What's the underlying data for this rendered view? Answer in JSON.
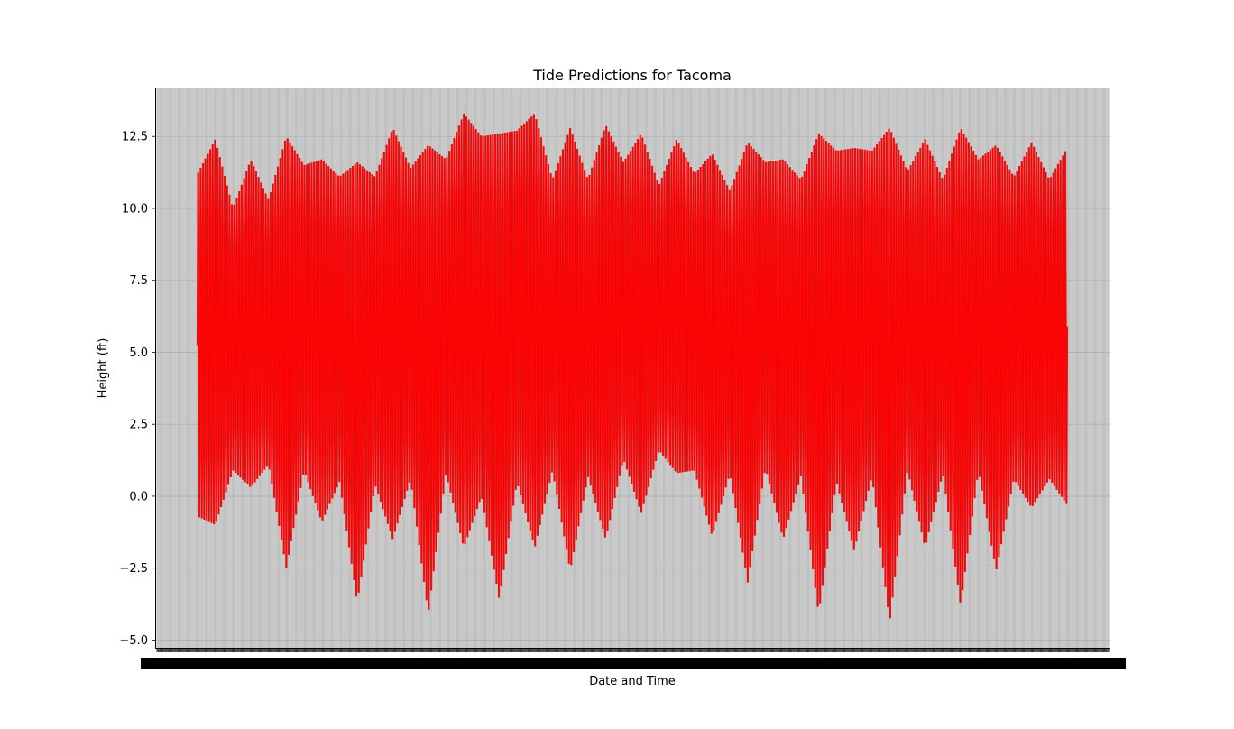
{
  "chart_data": {
    "type": "line",
    "title": "Tide Predictions for Tacoma",
    "xlabel": "Date and Time",
    "ylabel": "Height (ft)",
    "ylim": [
      -5.3,
      14.2
    ],
    "yticks": [
      -5.0,
      -2.5,
      0.0,
      2.5,
      5.0,
      7.5,
      10.0,
      12.5
    ],
    "ytick_labels": [
      "−5.0",
      "−2.5",
      "0.0",
      "2.5",
      "5.0",
      "7.5",
      "10.0",
      "12.5"
    ],
    "grid": true,
    "xtick_count": 950,
    "xtick_labels_note": "overlapping illegible date labels",
    "series": [
      {
        "color": "#ff0000",
        "edge_color": "#d62728",
        "high_envelope": [
          11.2,
          12.4,
          10.0,
          11.7,
          10.3,
          12.5,
          11.5,
          11.7,
          11.1,
          11.6,
          11.1,
          12.8,
          11.4,
          12.2,
          11.7,
          13.3,
          12.5,
          12.6,
          12.7,
          13.3,
          11.0,
          12.8,
          11.0,
          12.9,
          11.6,
          12.6,
          10.8,
          12.4,
          11.2,
          11.9,
          10.6,
          12.3,
          11.6,
          11.7,
          11.0,
          12.6,
          12.0,
          12.1,
          12.0,
          12.8,
          11.3,
          12.4,
          11.0,
          12.8,
          11.7,
          12.2,
          11.1,
          12.3,
          11.0,
          12.1
        ],
        "low_envelope": [
          -0.7,
          -1.0,
          0.9,
          0.3,
          1.1,
          -2.5,
          0.9,
          -0.9,
          0.5,
          -3.7,
          0.4,
          -1.5,
          0.6,
          -4.1,
          0.8,
          -1.8,
          0.0,
          -3.6,
          0.5,
          -1.8,
          0.9,
          -2.6,
          0.7,
          -1.5,
          1.3,
          -0.6,
          1.6,
          0.8,
          0.9,
          -1.4,
          0.8,
          -3.0,
          1.0,
          -1.5,
          0.7,
          -4.1,
          0.5,
          -1.9,
          0.7,
          -4.4,
          0.9,
          -1.8,
          0.8,
          -3.8,
          0.9,
          -2.6,
          0.6,
          -0.4,
          0.6,
          -0.3
        ]
      }
    ]
  }
}
